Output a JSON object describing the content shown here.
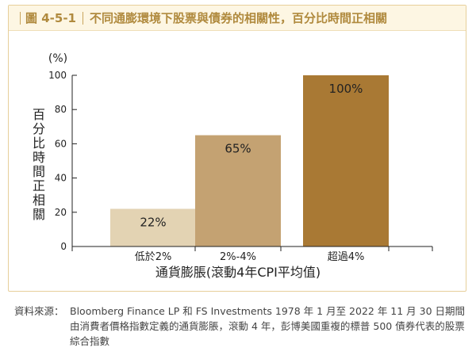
{
  "figure": {
    "number": "圖 4-5-1",
    "title": "不同通膨環境下股票與債券的相關性，百分比時間正相關"
  },
  "chart_data": {
    "type": "bar",
    "title": "不同通膨環境下股票與債券的相關性，百分比時間正相關",
    "categories": [
      "低於2%",
      "2%-4%",
      "超過4%"
    ],
    "values": [
      22,
      65,
      100
    ],
    "value_labels": [
      "22%",
      "65%",
      "100%"
    ],
    "bar_colors": [
      "#e3d3b3",
      "#c4a272",
      "#a97934"
    ],
    "xlabel": "通貨膨脹(滾動4年CPI平均值)",
    "ylabel": "百分比時間正相關",
    "yunit": "(%)",
    "ylim": [
      0,
      100
    ],
    "yticks": [
      0,
      20,
      40,
      60,
      80,
      100
    ],
    "ytick_labels": [
      "0",
      "20",
      "40",
      "60",
      "80",
      "100"
    ],
    "grid": false,
    "legend": "none"
  },
  "source": {
    "label": "資料來源：",
    "text": "Bloomberg Finance LP 和 FS Investments 1978 年 1 月至 2022 年 11 月 30 日期間由消費者價格指數定義的通貨膨脹，滾動 4 年，彭博美國重複的標普 500 債券代表的股票綜合指數"
  }
}
